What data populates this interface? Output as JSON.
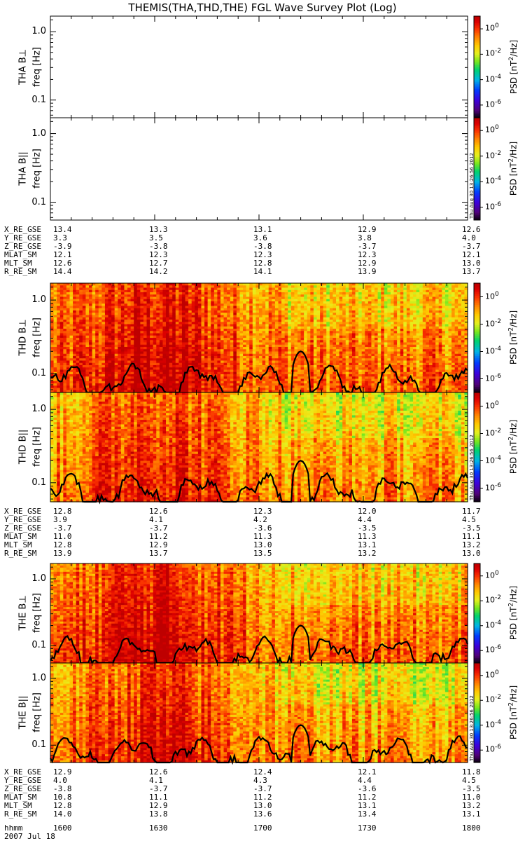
{
  "chart_data": {
    "type": "heatmap",
    "title": "THEMIS(THA,THD,THE) FGL Wave Survey Plot (Log)",
    "stamp": "Thu Aug 30 13:26:56 2012",
    "yticks": [
      "1.0",
      "0.1"
    ],
    "freq_unit": "freq [Hz]",
    "colorbar": {
      "label": "PSD [nT²/Hz]",
      "label_base": "PSD [nT",
      "label_sup": "2",
      "label_tail": "/Hz]",
      "ticks": [
        "10⁰",
        "10⁻²",
        "10⁻⁴",
        "10⁻⁶"
      ],
      "exponents": [
        "0",
        "-2",
        "-4",
        "-6"
      ],
      "range": [
        -7,
        1
      ]
    },
    "panels": [
      {
        "name": "THA B⊥",
        "has_data": false
      },
      {
        "name": "THA B||",
        "has_data": false
      },
      {
        "name": "THD B⊥",
        "has_data": true
      },
      {
        "name": "THD B||",
        "has_data": true
      },
      {
        "name": "THE B⊥",
        "has_data": true
      },
      {
        "name": "THE B||",
        "has_data": true
      }
    ],
    "ylabels": {
      "tha_perp": "THA B⊥",
      "tha_par": "THA B||",
      "thd_perp": "THD B⊥",
      "thd_par": "THD B||",
      "the_perp": "THE B⊥",
      "the_par": "THE B||"
    },
    "ephemeris": {
      "tha": {
        "X_RE_GSE": [
          "13.4",
          "13.3",
          "13.1",
          "12.9",
          "12.6"
        ],
        "Y_RE_GSE": [
          "3.3",
          "3.5",
          "3.6",
          "3.8",
          "4.0"
        ],
        "Z_RE_GSE": [
          "-3.9",
          "-3.8",
          "-3.8",
          "-3.7",
          "-3.7"
        ],
        "MLAT_SM": [
          "12.1",
          "12.3",
          "12.3",
          "12.3",
          "12.1"
        ],
        "MLT_SM": [
          "12.6",
          "12.7",
          "12.8",
          "12.9",
          "13.0"
        ],
        "R_RE_SM": [
          "14.4",
          "14.2",
          "14.1",
          "13.9",
          "13.7"
        ]
      },
      "thd": {
        "X_RE_GSE": [
          "12.8",
          "12.6",
          "12.3",
          "12.0",
          "11.7"
        ],
        "Y_RE_GSE": [
          "3.9",
          "4.1",
          "4.2",
          "4.4",
          "4.5"
        ],
        "Z_RE_GSE": [
          "-3.7",
          "-3.7",
          "-3.6",
          "-3.5",
          "-3.5"
        ],
        "MLAT_SM": [
          "11.0",
          "11.2",
          "11.3",
          "11.3",
          "11.1"
        ],
        "MLT_SM": [
          "12.8",
          "12.9",
          "13.0",
          "13.1",
          "13.2"
        ],
        "R_RE_SM": [
          "13.9",
          "13.7",
          "13.5",
          "13.2",
          "13.0"
        ]
      },
      "the": {
        "X_RE_GSE": [
          "12.9",
          "12.6",
          "12.4",
          "12.1",
          "11.8"
        ],
        "Y_RE_GSE": [
          "4.0",
          "4.1",
          "4.3",
          "4.4",
          "4.5"
        ],
        "Z_RE_GSE": [
          "-3.8",
          "-3.7",
          "-3.7",
          "-3.6",
          "-3.5"
        ],
        "MLAT_SM": [
          "10.8",
          "11.1",
          "11.2",
          "11.2",
          "11.0"
        ],
        "MLT_SM": [
          "12.8",
          "12.9",
          "13.0",
          "13.1",
          "13.2"
        ],
        "R_RE_SM": [
          "14.0",
          "13.8",
          "13.6",
          "13.4",
          "13.1"
        ]
      }
    },
    "eph_labels": [
      "X_RE_GSE",
      "Y_RE_GSE",
      "Z_RE_GSE",
      "MLAT_SM",
      "MLT_SM",
      "R_RE_SM"
    ],
    "time_label": "hhmm",
    "time_ticks": [
      "1600",
      "1630",
      "1700",
      "1730",
      "1800"
    ],
    "date": "2007 Jul 18",
    "xlim": [
      1600,
      1800
    ],
    "ylim_hz": [
      0.055,
      1.7
    ]
  },
  "colors": {
    "line": "#000000",
    "background": "#ffffff"
  }
}
